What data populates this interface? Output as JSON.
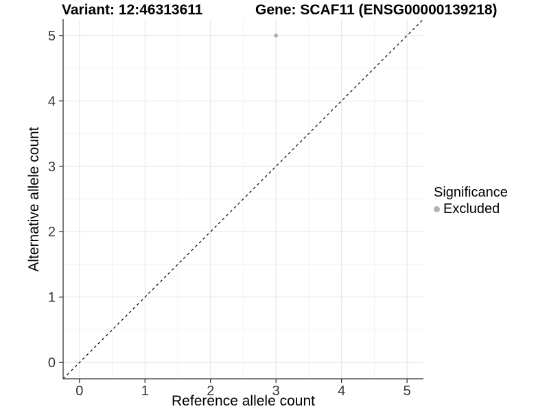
{
  "header": {
    "title_left": "Variant: 12:46313611",
    "title_right": "Gene: SCAF11 (ENSG00000139218)"
  },
  "chart_data": {
    "type": "scatter",
    "xlabel": "Reference allele count",
    "ylabel": "Alternative allele count",
    "xlim": [
      -0.25,
      5.25
    ],
    "ylim": [
      -0.25,
      5.25
    ],
    "xticks": [
      0,
      1,
      2,
      3,
      4,
      5
    ],
    "yticks": [
      0,
      1,
      2,
      3,
      4,
      5
    ],
    "grid": "major+minor, minor at 0.5 steps",
    "legend": {
      "title": "Significance",
      "position": "right",
      "items": [
        {
          "label": "Excluded",
          "color": "#b3b3b3"
        }
      ]
    },
    "series": [
      {
        "name": "Excluded",
        "color": "#b3b3b3",
        "points": [
          {
            "x": 3,
            "y": 5
          }
        ]
      }
    ],
    "identity_line": {
      "slope": 1,
      "intercept": 0,
      "style": "dashed",
      "color": "#000000"
    }
  },
  "colors": {
    "background": "#ffffff",
    "grid_major": "#e2e2e2",
    "grid_minor": "#f0f0f0",
    "axis": "#333333",
    "tick_label": "#333333",
    "text": "#000000"
  }
}
